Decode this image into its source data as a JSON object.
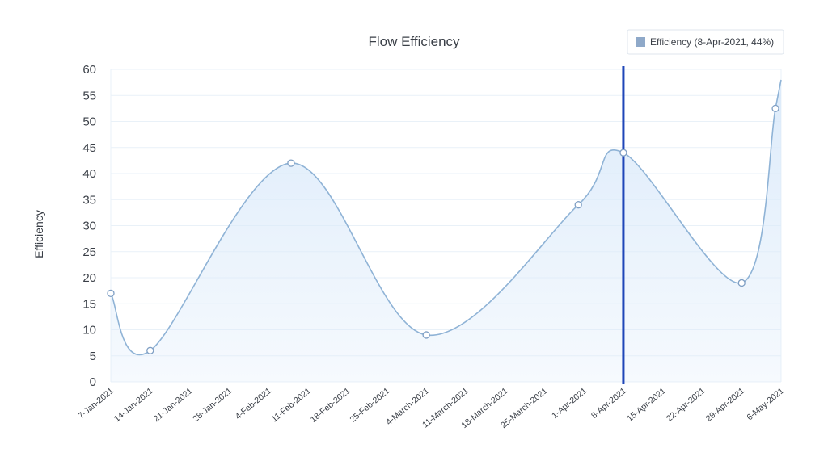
{
  "chart_data": {
    "type": "area",
    "title": "Flow Efficiency",
    "xlabel": "",
    "ylabel": "Efficiency",
    "ylim": [
      0,
      60
    ],
    "yticks": [
      0,
      5,
      10,
      15,
      20,
      25,
      30,
      35,
      40,
      45,
      50,
      55,
      60
    ],
    "categories": [
      "7-Jan-2021",
      "14-Jan-2021",
      "21-Jan-2021",
      "28-Jan-2021",
      "4-Feb-2021",
      "11-Feb-2021",
      "18-Feb-2021",
      "25-Feb-2021",
      "4-March-2021",
      "11-March-2021",
      "18-March-2021",
      "25-March-2021",
      "1-Apr-2021",
      "8-Apr-2021",
      "15-Apr-2021",
      "22-Apr-2021",
      "29-Apr-2021",
      "6-May-2021"
    ],
    "points": [
      {
        "x": "7-Jan-2021",
        "y": 17
      },
      {
        "x": "14-Jan-2021",
        "y": 6
      },
      {
        "x": "8-Feb-2021",
        "y": 42
      },
      {
        "x": "4-March-2021",
        "y": 9
      },
      {
        "x": "31-March-2021",
        "y": 34
      },
      {
        "x": "8-Apr-2021",
        "y": 44
      },
      {
        "x": "29-Apr-2021",
        "y": 19
      },
      {
        "x": "5-May-2021",
        "y": 52.5
      },
      {
        "x": "6-May-2021",
        "y": 58
      }
    ],
    "markers": [
      {
        "x": "7-Jan-2021",
        "y": 17
      },
      {
        "x": "14-Jan-2021",
        "y": 6
      },
      {
        "x": "8-Feb-2021",
        "y": 42
      },
      {
        "x": "4-March-2021",
        "y": 9
      },
      {
        "x": "31-March-2021",
        "y": 34
      },
      {
        "x": "8-Apr-2021",
        "y": 44
      },
      {
        "x": "29-Apr-2021",
        "y": 19
      },
      {
        "x": "5-May-2021",
        "y": 52.5
      }
    ],
    "highlight": {
      "x": "8-Apr-2021",
      "y": 44
    },
    "legend": {
      "label": "Efficiency (8-Apr-2021, 44%)",
      "position": "top-right"
    },
    "grid": true,
    "colors": {
      "line": "#8fb3d6",
      "fill": "#dbeafa",
      "highlight": "#1f46b8",
      "grid": "#e9f1f8",
      "legend_swatch": "#8fa9c9"
    }
  }
}
